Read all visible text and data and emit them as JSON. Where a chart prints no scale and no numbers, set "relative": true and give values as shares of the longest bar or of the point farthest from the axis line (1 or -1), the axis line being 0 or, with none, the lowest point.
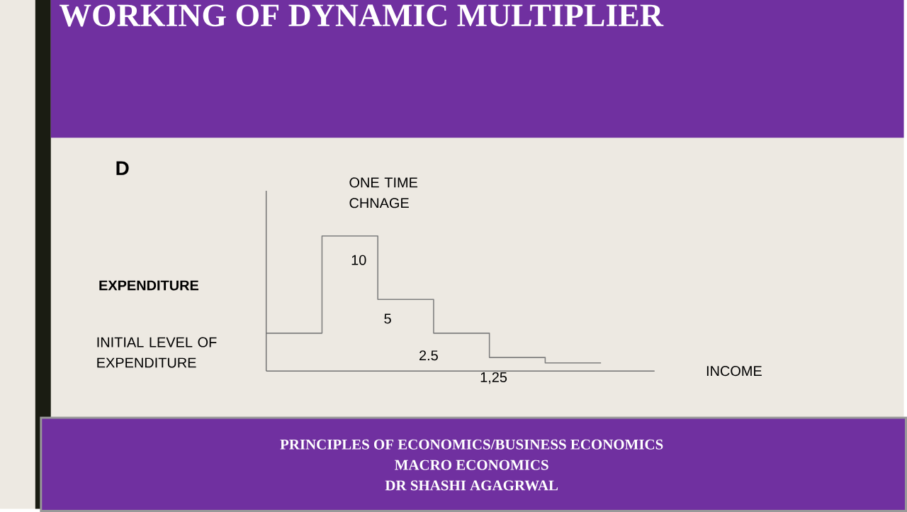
{
  "chart_data": {
    "type": "step",
    "title": "WORKING OF DYNAMIC MULTIPLIER",
    "xlabel": "INCOME",
    "ylabel": "EXPENDITURE",
    "relative": true,
    "categories": [
      null,
      null,
      null,
      null,
      null,
      null,
      null
    ],
    "series": [
      {
        "color": "#7f7f7f",
        "values": [
          0.28,
          1,
          0.53,
          0.28,
          0.1,
          0.06,
          0.06
        ]
      }
    ],
    "annotations": [
      "D",
      "ONE TIME CHNAGE",
      "10",
      "5",
      "2.5",
      "1,25",
      "INITIAL LEVEL OF EXPENDITURE",
      "PRINCIPLES OF ECONOMICS/BUSINESS ECONOMICS",
      "MACRO ECONOMICS",
      "DR SHASHI AGAGRWAL"
    ]
  }
}
